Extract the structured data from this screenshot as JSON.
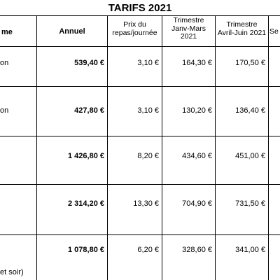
{
  "title": "TARIFS 2021",
  "headers": {
    "nom": "me",
    "annuel": "Annuel",
    "prix": [
      "Prix du",
      "repas/journée"
    ],
    "trim1": [
      "Trimestre",
      "Janv-Mars",
      "2021"
    ],
    "trim2": [
      "Trimestre",
      "Avril-Juin 2021"
    ],
    "last": "Se"
  },
  "rows": [
    {
      "name": "on",
      "annuel": "539,40 €",
      "prix": "3,10 €",
      "t1": "164,30 €",
      "t2": "170,50 €"
    },
    {
      "name": "on",
      "annuel": "427,80 €",
      "prix": "3,10 €",
      "t1": "130,20 €",
      "t2": "136,40 €"
    },
    {
      "name": "",
      "annuel": "1 426,80 €",
      "prix": "8,20 €",
      "t1": "434,60 €",
      "t2": "451,00 €"
    },
    {
      "name": "",
      "annuel": "2 314,20 €",
      "prix": "13,30 €",
      "t1": "704,90 €",
      "t2": "731,50 €"
    },
    {
      "name": "et soir)",
      "annuel": "1 078,80 €",
      "prix": "6,20 €",
      "t1": "328,60 €",
      "t2": "341,00 €"
    }
  ]
}
